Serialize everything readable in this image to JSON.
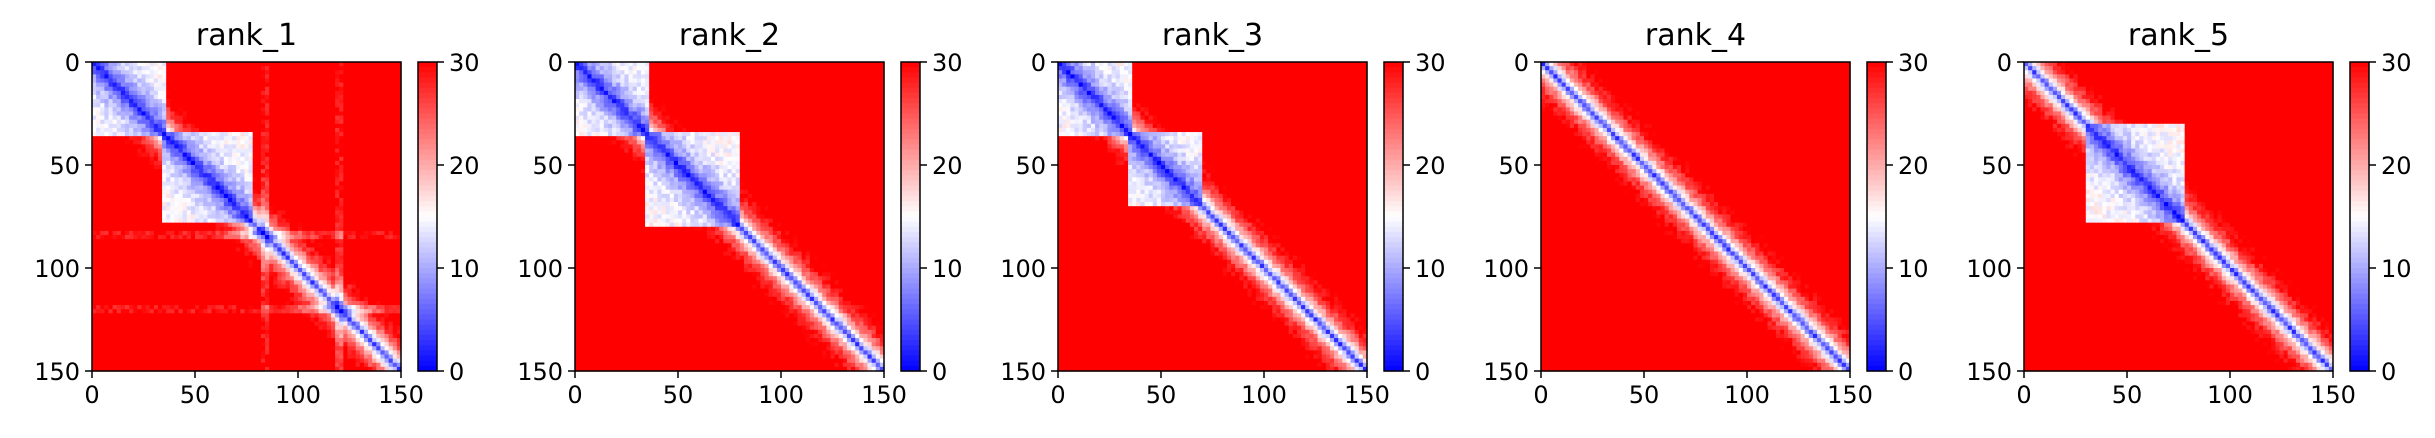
{
  "chart_data": [
    {
      "type": "heatmap",
      "title": "rank_1",
      "xlabel": "",
      "ylabel": "",
      "xlim": [
        0,
        150
      ],
      "ylim": [
        150,
        0
      ],
      "xticks": [
        "0",
        "50",
        "100",
        "150"
      ],
      "yticks": [
        "0",
        "50",
        "100",
        "150"
      ],
      "colorbar": {
        "range": [
          0,
          30
        ],
        "ticks": [
          "0",
          "10",
          "20",
          "30"
        ],
        "colormap": "bwr"
      },
      "blocks": [
        [
          0,
          35
        ],
        [
          35,
          78
        ]
      ],
      "stripes": [
        84,
        120
      ],
      "grid": false
    },
    {
      "type": "heatmap",
      "title": "rank_2",
      "xlabel": "",
      "ylabel": "",
      "xlim": [
        0,
        150
      ],
      "ylim": [
        150,
        0
      ],
      "xticks": [
        "0",
        "50",
        "100",
        "150"
      ],
      "yticks": [
        "0",
        "50",
        "100",
        "150"
      ],
      "colorbar": {
        "range": [
          0,
          30
        ],
        "ticks": [
          "0",
          "10",
          "20",
          "30"
        ],
        "colormap": "bwr"
      },
      "blocks": [
        [
          0,
          35
        ],
        [
          35,
          80
        ]
      ],
      "stripes": [],
      "grid": false
    },
    {
      "type": "heatmap",
      "title": "rank_3",
      "xlabel": "",
      "ylabel": "",
      "xlim": [
        0,
        150
      ],
      "ylim": [
        150,
        0
      ],
      "xticks": [
        "0",
        "50",
        "100",
        "150"
      ],
      "yticks": [
        "0",
        "50",
        "100",
        "150"
      ],
      "colorbar": {
        "range": [
          0,
          30
        ],
        "ticks": [
          "0",
          "10",
          "20",
          "30"
        ],
        "colormap": "bwr"
      },
      "blocks": [
        [
          0,
          35
        ],
        [
          35,
          70
        ]
      ],
      "stripes": [],
      "grid": false
    },
    {
      "type": "heatmap",
      "title": "rank_4",
      "xlabel": "",
      "ylabel": "",
      "xlim": [
        0,
        150
      ],
      "ylim": [
        150,
        0
      ],
      "xticks": [
        "0",
        "50",
        "100",
        "150"
      ],
      "yticks": [
        "0",
        "50",
        "100",
        "150"
      ],
      "colorbar": {
        "range": [
          0,
          30
        ],
        "ticks": [
          "0",
          "10",
          "20",
          "30"
        ],
        "colormap": "bwr"
      },
      "blocks": [],
      "stripes": [],
      "grid": false
    },
    {
      "type": "heatmap",
      "title": "rank_5",
      "xlabel": "",
      "ylabel": "",
      "xlim": [
        0,
        150
      ],
      "ylim": [
        150,
        0
      ],
      "xticks": [
        "0",
        "50",
        "100",
        "150"
      ],
      "yticks": [
        "0",
        "50",
        "100",
        "150"
      ],
      "colorbar": {
        "range": [
          0,
          30
        ],
        "ticks": [
          "0",
          "10",
          "20",
          "30"
        ],
        "colormap": "bwr"
      },
      "blocks": [
        [
          30,
          78
        ]
      ],
      "stripes": [],
      "grid": false
    }
  ],
  "colors": {
    "low": "#0000ff",
    "mid": "#ffffff",
    "high": "#ff0000",
    "axis": "#000000"
  }
}
